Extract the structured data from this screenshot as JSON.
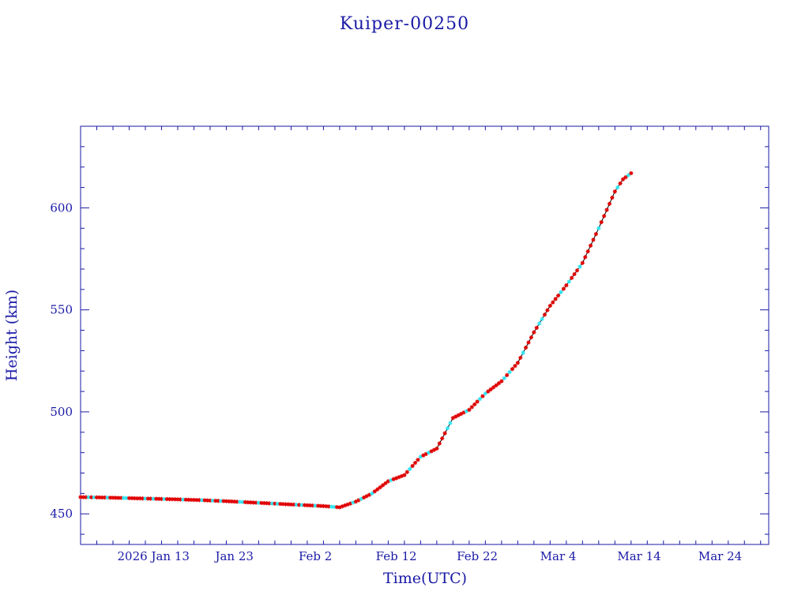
{
  "chart_data": {
    "type": "scatter",
    "title": "Kuiper-00250",
    "xlabel": "Time(UTC)",
    "ylabel": "Height (km)",
    "xlim": [
      "2026-01-04",
      "2026-03-30"
    ],
    "ylim": [
      435,
      640
    ],
    "grid": false,
    "x_tick_labels": [
      {
        "date": "2026-01-13",
        "label": "2026 Jan 13"
      },
      {
        "date": "2026-01-23",
        "label": "Jan 23"
      },
      {
        "date": "2026-02-02",
        "label": "Feb  2"
      },
      {
        "date": "2026-02-12",
        "label": "Feb 12"
      },
      {
        "date": "2026-02-22",
        "label": "Feb 22"
      },
      {
        "date": "2026-03-04",
        "label": "Mar  4"
      },
      {
        "date": "2026-03-14",
        "label": "Mar 14"
      },
      {
        "date": "2026-03-24",
        "label": "Mar 24"
      }
    ],
    "y_ticks": [
      450,
      500,
      550,
      600
    ],
    "colors": {
      "axis": "#1a1aa6",
      "marker_primary": "#e00000",
      "marker_secondary": "#33e6f2",
      "line": "#000000"
    },
    "series": [
      {
        "marker": "star",
        "points": [
          [
            "2026-01-04",
            458.2
          ],
          [
            "2026-01-07",
            458.0
          ],
          [
            "2026-01-10",
            457.7
          ],
          [
            "2026-01-13",
            457.4
          ],
          [
            "2026-01-16",
            457.1
          ],
          [
            "2026-01-19",
            456.7
          ],
          [
            "2026-01-22",
            456.2
          ],
          [
            "2026-01-25",
            455.6
          ],
          [
            "2026-01-28",
            455.0
          ],
          [
            "2026-01-31",
            454.4
          ],
          [
            "2026-02-03",
            453.8
          ],
          [
            "2026-02-05",
            453.2
          ],
          [
            "2026-02-07",
            456.0
          ],
          [
            "2026-02-09",
            460.0
          ],
          [
            "2026-02-11",
            466.0
          ],
          [
            "2026-02-13",
            469.0
          ],
          [
            "2026-02-15",
            478.0
          ],
          [
            "2026-02-17",
            482.0
          ],
          [
            "2026-02-19",
            497.0
          ],
          [
            "2026-02-21",
            501.0
          ],
          [
            "2026-02-23",
            509.0
          ],
          [
            "2026-02-25",
            515.0
          ],
          [
            "2026-02-27",
            524.0
          ],
          [
            "2026-03-01",
            539.0
          ],
          [
            "2026-03-03",
            552.0
          ],
          [
            "2026-03-05",
            562.0
          ],
          [
            "2026-03-07",
            573.0
          ],
          [
            "2026-03-09",
            590.0
          ],
          [
            "2026-03-11",
            608.0
          ],
          [
            "2026-03-12",
            614.0
          ],
          [
            "2026-03-13",
            617.0
          ]
        ]
      }
    ]
  }
}
